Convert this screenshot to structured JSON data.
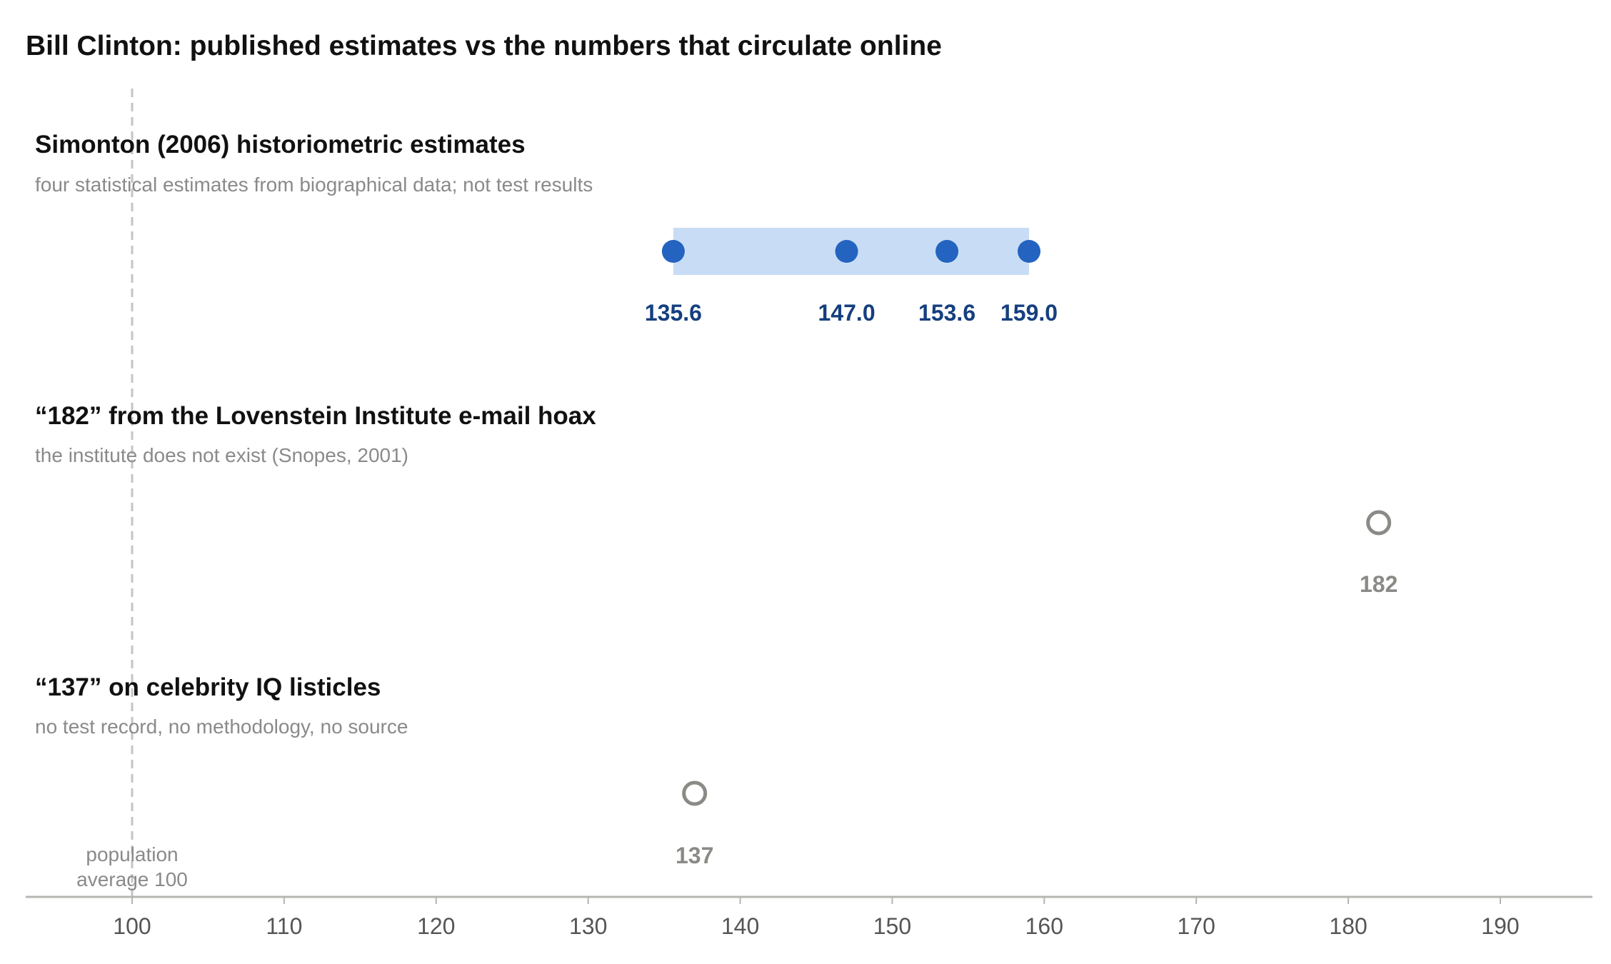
{
  "chart_data": {
    "type": "scatter",
    "title": "Bill Clinton: published estimates vs the numbers that circulate online",
    "xlim": [
      93,
      196
    ],
    "x_ticks": [
      100,
      110,
      120,
      130,
      140,
      150,
      160,
      170,
      180,
      190
    ],
    "reference_line": {
      "x": 100,
      "label_lines": [
        "population",
        "average 100"
      ]
    },
    "rows": [
      {
        "title": "Simonton (2006) historiometric estimates",
        "subtitle": "four statistical estimates from biographical data; not test results",
        "values": [
          135.6,
          147.0,
          153.6,
          159.0
        ],
        "labels": [
          "135.6",
          "147.0",
          "153.6",
          "159.0"
        ],
        "range": [
          135.6,
          159.0
        ],
        "marker": "filled"
      },
      {
        "title": "“182” from the Lovenstein Institute e-mail hoax",
        "subtitle": "the institute does not exist (Snopes, 2001)",
        "values": [
          182
        ],
        "labels": [
          "182"
        ],
        "marker": "hollow"
      },
      {
        "title": "“137” on celebrity IQ listicles",
        "subtitle": "no test record, no methodology, no source",
        "values": [
          137
        ],
        "labels": [
          "137"
        ],
        "marker": "hollow"
      }
    ],
    "grid": false
  },
  "colors": {
    "estimate_marker": "#2463c0",
    "estimate_label": "#153f7f",
    "range_band": "#c8ddf5",
    "hoax_marker": "#8a8a86",
    "hoax_label": "#8a8a86",
    "axis": "#b5b5b2",
    "ref_line": "#c4c4c4"
  }
}
